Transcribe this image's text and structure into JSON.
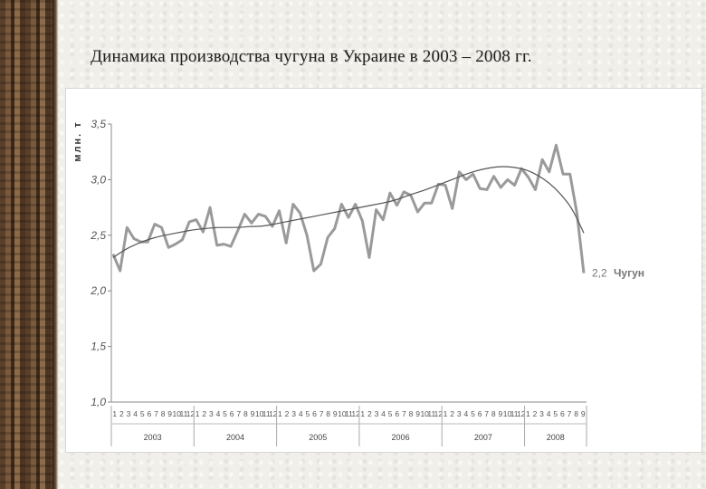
{
  "page": {
    "title": "Динамика производства чугуна в Украине в 2003 – 2008 гг."
  },
  "chart_data": {
    "type": "line",
    "title": "Динамика производства чугуна в Украине в 2003 – 2008 гг.",
    "ylabel": "млн. т",
    "ylim": [
      1.0,
      3.5
    ],
    "yticks": [
      "1,0",
      "1,5",
      "2,0",
      "2,5",
      "3,0",
      "3,5"
    ],
    "ytick_values": [
      1.0,
      1.5,
      2.0,
      2.5,
      3.0,
      3.5
    ],
    "grid": false,
    "years": [
      "2003",
      "2004",
      "2005",
      "2006",
      "2007",
      "2008"
    ],
    "year_months": [
      12,
      12,
      12,
      12,
      12,
      9
    ],
    "month_labels": [
      "1",
      "2",
      "3",
      "4",
      "5",
      "6",
      "7",
      "8",
      "9",
      "10",
      "11",
      "12"
    ],
    "end_label": "2,2",
    "series": [
      {
        "name": "Чугун",
        "color": "#9a9a9a",
        "values": [
          2.33,
          2.18,
          2.57,
          2.47,
          2.44,
          2.44,
          2.6,
          2.57,
          2.39,
          2.42,
          2.46,
          2.62,
          2.64,
          2.53,
          2.75,
          2.41,
          2.42,
          2.4,
          2.54,
          2.69,
          2.61,
          2.69,
          2.67,
          2.58,
          2.72,
          2.43,
          2.78,
          2.7,
          2.5,
          2.18,
          2.24,
          2.48,
          2.56,
          2.78,
          2.66,
          2.78,
          2.63,
          2.3,
          2.73,
          2.64,
          2.88,
          2.77,
          2.89,
          2.86,
          2.71,
          2.79,
          2.79,
          2.96,
          2.95,
          2.74,
          3.07,
          3.0,
          3.05,
          2.92,
          2.91,
          3.03,
          2.93,
          3.0,
          2.95,
          3.1,
          3.02,
          2.91,
          3.18,
          3.07,
          3.31,
          3.05,
          3.05,
          2.7,
          2.16
        ]
      },
      {
        "name": "trend",
        "color": "#555555",
        "values": [
          2.3,
          2.37,
          2.42,
          2.46,
          2.49,
          2.51,
          2.53,
          2.55,
          2.56,
          2.57,
          2.57,
          2.57,
          2.58,
          2.58,
          2.6,
          2.62,
          2.64,
          2.66,
          2.68,
          2.7,
          2.72,
          2.74,
          2.76,
          2.78,
          2.8,
          2.83,
          2.87,
          2.9,
          2.94,
          2.98,
          3.02,
          3.06,
          3.09,
          3.11,
          3.12,
          3.11,
          3.09,
          3.04,
          2.97,
          2.87,
          2.74,
          2.52
        ]
      }
    ]
  }
}
